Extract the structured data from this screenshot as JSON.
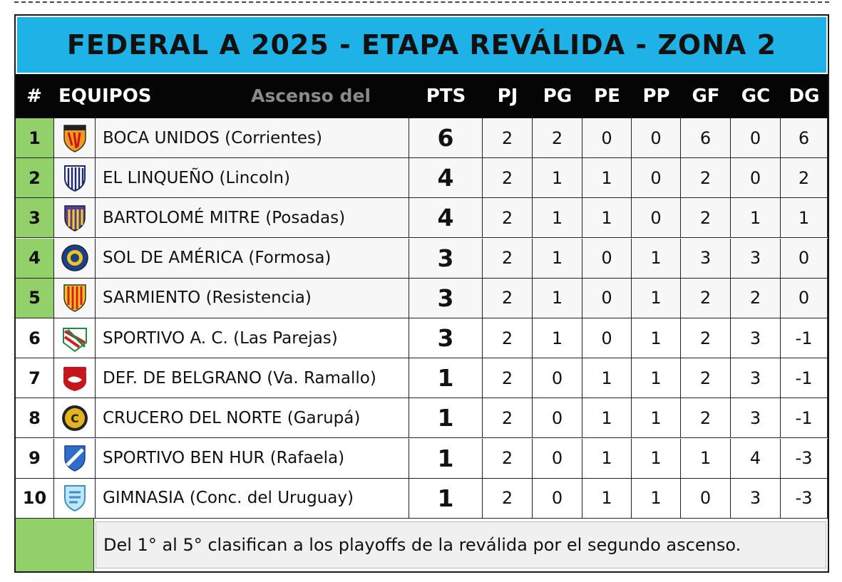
{
  "title": "FEDERAL A 2025 - ETAPA REVÁLIDA - ZONA 2",
  "header": {
    "pos": "#",
    "team": "EQUIPOS",
    "tag": "Ascenso del Interior",
    "cols": [
      "PTS",
      "PJ",
      "PG",
      "PE",
      "PP",
      "GF",
      "GC",
      "DG"
    ]
  },
  "colors": {
    "title_bg": "#1fb2e6",
    "qualify": "#92d16a",
    "header_bg": "#050505"
  },
  "rows": [
    {
      "pos": "1",
      "team": "BOCA UNIDOS (Corrientes)",
      "crest": "boca-unidos-crest",
      "pts": "6",
      "pj": "2",
      "pg": "2",
      "pe": "0",
      "pp": "0",
      "gf": "6",
      "gc": "0",
      "dg": "6",
      "qualify": true
    },
    {
      "pos": "2",
      "team": "EL LINQUEÑO (Lincoln)",
      "crest": "el-linqueno-crest",
      "pts": "4",
      "pj": "2",
      "pg": "1",
      "pe": "1",
      "pp": "0",
      "gf": "2",
      "gc": "0",
      "dg": "2",
      "qualify": true
    },
    {
      "pos": "3",
      "team": "BARTOLOMÉ MITRE (Posadas)",
      "crest": "bartolome-mitre-crest",
      "pts": "4",
      "pj": "2",
      "pg": "1",
      "pe": "1",
      "pp": "0",
      "gf": "2",
      "gc": "1",
      "dg": "1",
      "qualify": true
    },
    {
      "pos": "4",
      "team": "SOL DE AMÉRICA (Formosa)",
      "crest": "sol-de-america-crest",
      "pts": "3",
      "pj": "2",
      "pg": "1",
      "pe": "0",
      "pp": "1",
      "gf": "3",
      "gc": "3",
      "dg": "0",
      "qualify": true
    },
    {
      "pos": "5",
      "team": "SARMIENTO (Resistencia)",
      "crest": "sarmiento-crest",
      "pts": "3",
      "pj": "2",
      "pg": "1",
      "pe": "0",
      "pp": "1",
      "gf": "2",
      "gc": "2",
      "dg": "0",
      "qualify": true
    },
    {
      "pos": "6",
      "team": "SPORTIVO A. C. (Las Parejas)",
      "crest": "sportivo-ac-crest",
      "pts": "3",
      "pj": "2",
      "pg": "1",
      "pe": "0",
      "pp": "1",
      "gf": "2",
      "gc": "3",
      "dg": "-1",
      "qualify": false
    },
    {
      "pos": "7",
      "team": "DEF. DE BELGRANO (Va. Ramallo)",
      "crest": "def-belgrano-crest",
      "pts": "1",
      "pj": "2",
      "pg": "0",
      "pe": "1",
      "pp": "1",
      "gf": "2",
      "gc": "3",
      "dg": "-1",
      "qualify": false
    },
    {
      "pos": "8",
      "team": "CRUCERO DEL NORTE (Garupá)",
      "crest": "crucero-del-norte-crest",
      "pts": "1",
      "pj": "2",
      "pg": "0",
      "pe": "1",
      "pp": "1",
      "gf": "2",
      "gc": "3",
      "dg": "-1",
      "qualify": false
    },
    {
      "pos": "9",
      "team": "SPORTIVO BEN HUR (Rafaela)",
      "crest": "ben-hur-crest",
      "pts": "1",
      "pj": "2",
      "pg": "0",
      "pe": "1",
      "pp": "1",
      "gf": "1",
      "gc": "4",
      "dg": "-3",
      "qualify": false
    },
    {
      "pos": "10",
      "team": "GIMNASIA (Conc. del Uruguay)",
      "crest": "gimnasia-crest",
      "pts": "1",
      "pj": "2",
      "pg": "0",
      "pe": "1",
      "pp": "1",
      "gf": "0",
      "gc": "3",
      "dg": "-3",
      "qualify": false
    }
  ],
  "footer": {
    "legend": "Del 1° al 5° clasifican a los playoffs de la reválida por el segundo ascenso."
  }
}
